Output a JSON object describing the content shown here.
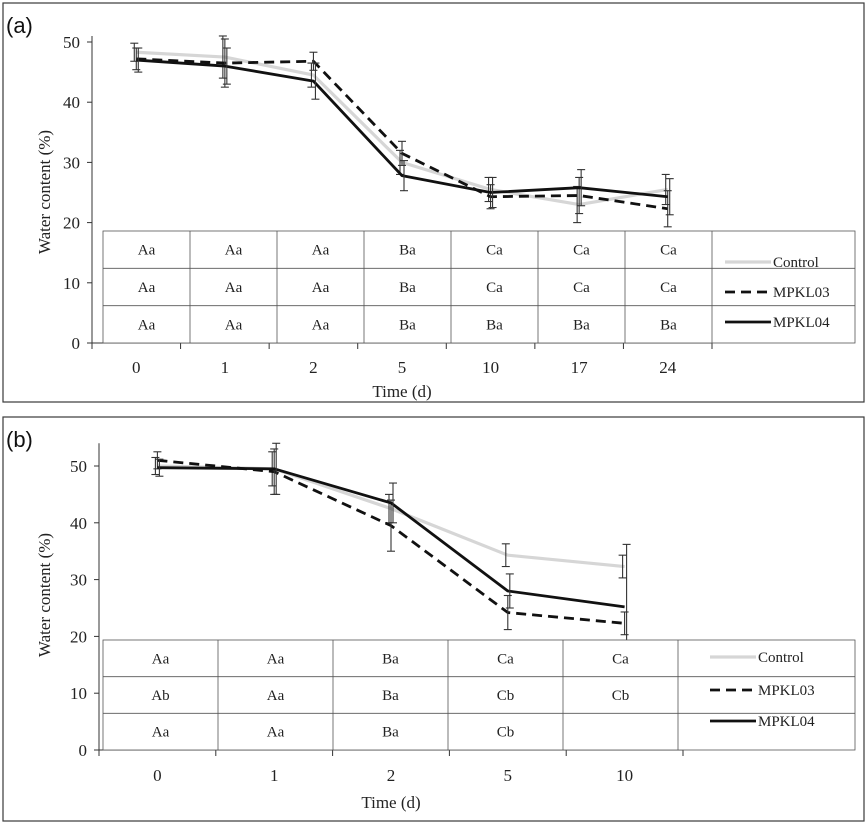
{
  "chart_data": [
    {
      "panel_label": "(a)",
      "type": "line",
      "xlabel": "Time (d)",
      "ylabel": "Water content (%)",
      "ylim": [
        0,
        50
      ],
      "yticks": [
        0,
        10,
        20,
        30,
        40,
        50
      ],
      "categories": [
        "0",
        "1",
        "2",
        "5",
        "10",
        "17",
        "24"
      ],
      "series": [
        {
          "name": "Control",
          "color": "#d6d6d6",
          "dash": "solid",
          "values": [
            48.3,
            47.5,
            44.5,
            30.0,
            25.5,
            23.0,
            25.5
          ],
          "errors": [
            1.5,
            3.5,
            2.0,
            2.0,
            2.0,
            3.0,
            2.5
          ]
        },
        {
          "name": "MPKL03",
          "color": "#111111",
          "dash": "dashed",
          "values": [
            47.2,
            46.5,
            46.8,
            31.5,
            24.3,
            24.5,
            22.3
          ],
          "errors": [
            1.8,
            4.0,
            1.5,
            2.0,
            2.0,
            3.0,
            3.0
          ]
        },
        {
          "name": "MPKL04",
          "color": "#111111",
          "dash": "solid",
          "values": [
            47.0,
            46.0,
            43.5,
            27.8,
            25.0,
            25.8,
            24.3
          ],
          "errors": [
            2.0,
            3.0,
            3.0,
            2.5,
            2.5,
            3.0,
            3.0
          ]
        }
      ],
      "table_rows": [
        [
          "Aa",
          "Aa",
          "Aa",
          "Ba",
          "Ca",
          "Ca",
          "Ca"
        ],
        [
          "Aa",
          "Aa",
          "Aa",
          "Ba",
          "Ca",
          "Ca",
          "Ca"
        ],
        [
          "Aa",
          "Aa",
          "Aa",
          "Ba",
          "Ba",
          "Ba",
          "Ba"
        ]
      ]
    },
    {
      "panel_label": "(b)",
      "type": "line",
      "xlabel": "Time (d)",
      "ylabel": "Water content (%)",
      "ylim": [
        0,
        55
      ],
      "yticks": [
        0,
        10,
        20,
        30,
        40,
        50
      ],
      "categories": [
        "0",
        "1",
        "2",
        "5",
        "10"
      ],
      "series": [
        {
          "name": "Control",
          "color": "#d6d6d6",
          "dash": "solid",
          "values": [
            50.0,
            49.5,
            42.5,
            34.3,
            32.3
          ],
          "errors": [
            1.5,
            3.0,
            2.5,
            2.0,
            2.0
          ]
        },
        {
          "name": "MPKL03",
          "color": "#111111",
          "dash": "dashed",
          "values": [
            51.0,
            49.0,
            39.5,
            24.2,
            22.3
          ],
          "errors": [
            1.5,
            4.0,
            4.5,
            3.0,
            2.0
          ]
        },
        {
          "name": "MPKL04",
          "color": "#111111",
          "dash": "solid",
          "values": [
            49.7,
            49.5,
            43.5,
            28.0,
            25.2
          ],
          "errors": [
            1.5,
            4.5,
            3.5,
            3.0,
            11.0
          ]
        }
      ],
      "table_rows": [
        [
          "Aa",
          "Aa",
          "Ba",
          "Ca",
          "Ca"
        ],
        [
          "Ab",
          "Aa",
          "Ba",
          "Cb",
          "Cb"
        ],
        [
          "Aa",
          "Aa",
          "Ba",
          "Cb",
          ""
        ]
      ]
    }
  ]
}
